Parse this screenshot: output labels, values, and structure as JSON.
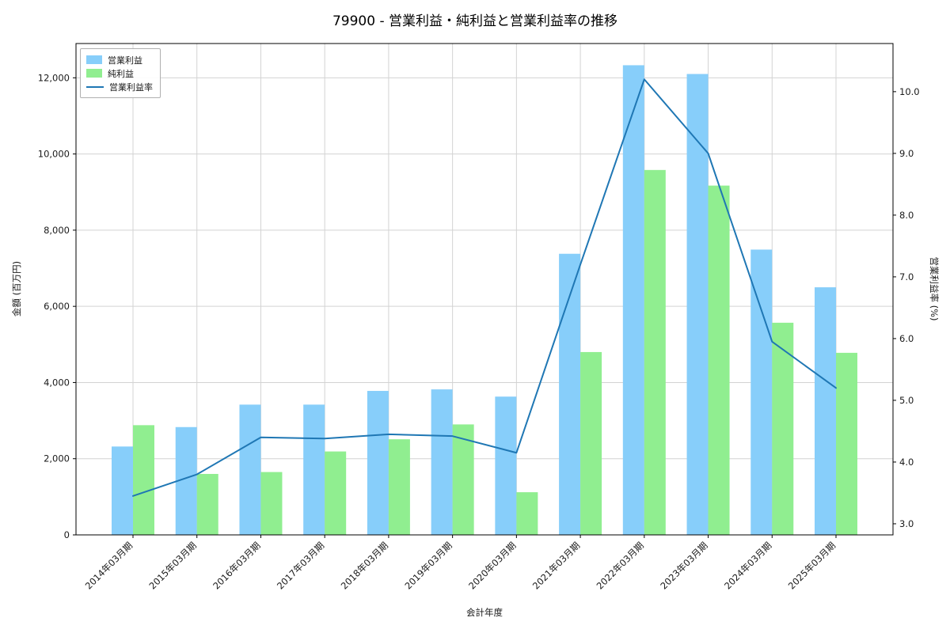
{
  "figure": {
    "title": "79900 - 営業利益・純利益と営業利益率の推移",
    "xlabel": "会計年度",
    "ylabel_left": "金額 (百万円)",
    "ylabel_right": "営業利益率 (%)"
  },
  "legend": {
    "items": [
      {
        "label": "営業利益",
        "type": "patch",
        "color": "#87CEFA"
      },
      {
        "label": "純利益",
        "type": "patch",
        "color": "#90EE90"
      },
      {
        "label": "営業利益率",
        "type": "line",
        "color": "#1f77b4"
      }
    ]
  },
  "chart_data": {
    "type": "bar+line",
    "title": "79900 - 営業利益・純利益と営業利益率の推移",
    "xlabel": "会計年度",
    "ylabel_left": "金額 (百万円)",
    "ylabel_right": "営業利益率 (%)",
    "grid": true,
    "legend_position": "upper left",
    "categories": [
      "2014年03月期",
      "2015年03月期",
      "2016年03月期",
      "2017年03月期",
      "2018年03月期",
      "2019年03月期",
      "2020年03月期",
      "2021年03月期",
      "2022年03月期",
      "2023年03月期",
      "2024年03月期",
      "2025年03月期"
    ],
    "series": [
      {
        "name": "営業利益",
        "type": "bar",
        "axis": "left",
        "color": "#87CEFA",
        "values": [
          2320,
          2830,
          3420,
          3420,
          3780,
          3820,
          3630,
          7380,
          12330,
          12100,
          7490,
          6500
        ]
      },
      {
        "name": "純利益",
        "type": "bar",
        "axis": "left",
        "color": "#90EE90",
        "values": [
          2880,
          1600,
          1650,
          2190,
          2510,
          2900,
          1120,
          4800,
          9580,
          9170,
          5570,
          4780
        ]
      },
      {
        "name": "営業利益率",
        "type": "line",
        "axis": "right",
        "color": "#1f77b4",
        "values": [
          3.45,
          3.8,
          4.4,
          4.38,
          4.45,
          4.42,
          4.15,
          7.2,
          10.2,
          9.0,
          5.95,
          5.2
        ]
      }
    ],
    "left_axis": {
      "ticks": [
        0,
        2000,
        4000,
        6000,
        8000,
        10000,
        12000
      ],
      "lim": [
        0,
        12900
      ]
    },
    "right_axis": {
      "ticks": [
        3.0,
        4.0,
        5.0,
        6.0,
        7.0,
        8.0,
        9.0,
        10.0
      ],
      "lim": [
        2.82,
        10.78
      ]
    }
  }
}
